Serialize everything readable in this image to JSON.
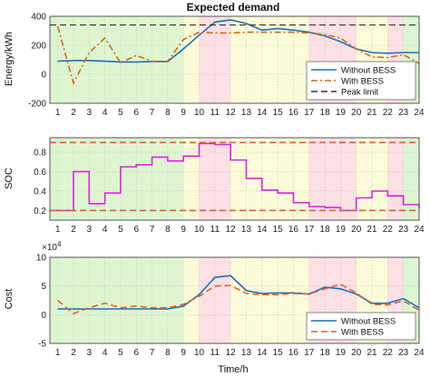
{
  "chart_data": [
    {
      "type": "line",
      "title": "Expected demand",
      "ylabel": "Energy/kWh",
      "xlabel": "",
      "x": [
        1,
        2,
        3,
        4,
        5,
        6,
        7,
        8,
        9,
        10,
        11,
        12,
        13,
        14,
        15,
        16,
        17,
        18,
        19,
        20,
        21,
        22,
        23,
        24
      ],
      "xlim": [
        0.5,
        24
      ],
      "ylim": [
        -200,
        400
      ],
      "yticks": [
        "-200",
        "0",
        "200",
        "400"
      ],
      "series": [
        {
          "name": "Without BESS",
          "color": "#1f6fb5",
          "style": "solid",
          "values": [
            90,
            95,
            95,
            90,
            85,
            85,
            88,
            88,
            175,
            270,
            360,
            375,
            350,
            305,
            315,
            305,
            290,
            265,
            225,
            175,
            150,
            145,
            150,
            150
          ]
        },
        {
          "name": "With BESS",
          "color": "#d2691e",
          "style": "dashdot",
          "values": [
            330,
            -60,
            150,
            250,
            80,
            130,
            90,
            90,
            240,
            290,
            285,
            285,
            290,
            290,
            290,
            290,
            285,
            275,
            250,
            175,
            120,
            115,
            135,
            75
          ]
        },
        {
          "name": "Peak limit",
          "color": "#333333",
          "style": "dashed",
          "values": [
            340,
            340,
            340,
            340,
            340,
            340,
            340,
            340,
            340,
            340,
            340,
            340,
            340,
            340,
            340,
            340,
            340,
            340,
            340,
            340,
            340,
            340,
            340,
            340
          ]
        }
      ]
    },
    {
      "type": "line",
      "title": "",
      "ylabel": "SOC",
      "xlabel": "",
      "x": [
        1,
        2,
        3,
        4,
        5,
        6,
        7,
        8,
        9,
        10,
        11,
        12,
        13,
        14,
        15,
        16,
        17,
        18,
        19,
        20,
        21,
        22,
        23,
        24
      ],
      "xlim": [
        0.5,
        24
      ],
      "ylim": [
        0.1,
        0.95
      ],
      "yticks": [
        "0.2",
        "0.4",
        "0.6",
        "0.8"
      ],
      "step": true,
      "series": [
        {
          "name": "",
          "color": "#e020e0",
          "style": "step",
          "values": [
            0.2,
            0.6,
            0.27,
            0.38,
            0.65,
            0.67,
            0.75,
            0.71,
            0.76,
            0.89,
            0.88,
            0.72,
            0.53,
            0.41,
            0.38,
            0.28,
            0.24,
            0.23,
            0.2,
            0.33,
            0.4,
            0.35,
            0.26,
            0.22
          ]
        },
        {
          "name": "",
          "color": "#e06030",
          "style": "dashed",
          "values": [
            0.9,
            0.9,
            0.9,
            0.9,
            0.9,
            0.9,
            0.9,
            0.9,
            0.9,
            0.9,
            0.9,
            0.9,
            0.9,
            0.9,
            0.9,
            0.9,
            0.9,
            0.9,
            0.9,
            0.9,
            0.9,
            0.9,
            0.9,
            0.9
          ]
        },
        {
          "name": "",
          "color": "#e06030",
          "style": "dashed",
          "values": [
            0.2,
            0.2,
            0.2,
            0.2,
            0.2,
            0.2,
            0.2,
            0.2,
            0.2,
            0.2,
            0.2,
            0.2,
            0.2,
            0.2,
            0.2,
            0.2,
            0.2,
            0.2,
            0.2,
            0.2,
            0.2,
            0.2,
            0.2,
            0.2
          ]
        }
      ]
    },
    {
      "type": "line",
      "title": "",
      "ylabel": "Cost",
      "xlabel": "Time/h",
      "exponent_label": "×10",
      "exponent_power": "4",
      "x": [
        1,
        2,
        3,
        4,
        5,
        6,
        7,
        8,
        9,
        10,
        11,
        12,
        13,
        14,
        15,
        16,
        17,
        18,
        19,
        20,
        21,
        22,
        23,
        24
      ],
      "xlim": [
        0.5,
        24
      ],
      "ylim": [
        -5,
        10
      ],
      "yticks": [
        "-5",
        "0",
        "5",
        "10"
      ],
      "series": [
        {
          "name": "Without BESS",
          "color": "#1f6fb5",
          "style": "solid",
          "values": [
            1,
            1,
            1,
            1,
            1,
            1,
            1,
            1,
            1.5,
            3.5,
            6.5,
            6.8,
            4.2,
            3.7,
            3.8,
            3.8,
            3.6,
            4.8,
            4.5,
            3.6,
            2,
            2,
            2.8,
            1.2
          ]
        },
        {
          "name": "With BESS",
          "color": "#e06030",
          "style": "dashed",
          "values": [
            2.5,
            0.2,
            1.2,
            2,
            1.2,
            1.5,
            1.2,
            1.2,
            1.8,
            3.2,
            5,
            5.1,
            3.7,
            3.5,
            3.5,
            3.7,
            3.6,
            4.5,
            5.3,
            3.8,
            1.8,
            1.7,
            2.4,
            0.8
          ]
        }
      ]
    }
  ],
  "xticks": [
    "1",
    "2",
    "3",
    "4",
    "5",
    "6",
    "7",
    "8",
    "9",
    "10",
    "11",
    "12",
    "13",
    "14",
    "15",
    "16",
    "17",
    "18",
    "19",
    "20",
    "21",
    "22",
    "23",
    "24"
  ],
  "bands": [
    {
      "from": 0.5,
      "to": 9,
      "color": "#ddf5d0"
    },
    {
      "from": 9,
      "to": 10,
      "color": "#fbfbd8"
    },
    {
      "from": 10,
      "to": 12,
      "color": "#fce0e4"
    },
    {
      "from": 12,
      "to": 17,
      "color": "#fbfbd8"
    },
    {
      "from": 17,
      "to": 20,
      "color": "#fce0e4"
    },
    {
      "from": 20,
      "to": 22,
      "color": "#fbfbd8"
    },
    {
      "from": 22,
      "to": 23,
      "color": "#fce0e4"
    },
    {
      "from": 23,
      "to": 24,
      "color": "#ddf5d0"
    }
  ]
}
